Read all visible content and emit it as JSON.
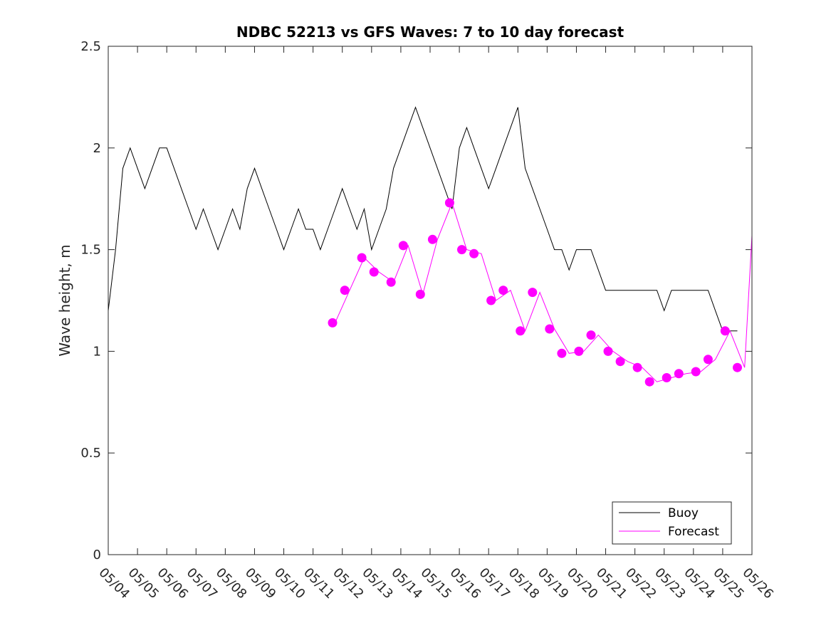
{
  "chart_data": {
    "type": "line",
    "title": "NDBC 52213 vs GFS Waves: 7 to 10 day forecast",
    "xlabel": "",
    "ylabel": "Wave height, m",
    "xlim": [
      "05/04",
      "05/26"
    ],
    "ylim": [
      0,
      2.5
    ],
    "x_ticks": [
      "05/04",
      "05/05",
      "05/06",
      "05/07",
      "05/08",
      "05/09",
      "05/10",
      "05/11",
      "05/12",
      "05/13",
      "05/14",
      "05/15",
      "05/16",
      "05/17",
      "05/18",
      "05/19",
      "05/20",
      "05/21",
      "05/22",
      "05/23",
      "05/24",
      "05/25",
      "05/26"
    ],
    "y_ticks": [
      0,
      0.5,
      1,
      1.5,
      2,
      2.5
    ],
    "y_tick_labels": [
      "0",
      "0.5",
      "1",
      "1.5",
      "2",
      "2.5"
    ],
    "grid": false,
    "legend": {
      "placement": "bottom-right",
      "entries": [
        "Buoy",
        "Forecast"
      ]
    },
    "colors": {
      "buoy": "#000000",
      "forecast": "#ff00ff"
    },
    "series": [
      {
        "name": "Buoy",
        "x": [
          "05/04 00:00",
          "05/04 06:00",
          "05/04 12:00",
          "05/04 18:00",
          "05/05 00:00",
          "05/05 06:00",
          "05/05 12:00",
          "05/05 18:00",
          "05/06 00:00",
          "05/06 06:00",
          "05/06 12:00",
          "05/06 18:00",
          "05/07 00:00",
          "05/07 06:00",
          "05/07 12:00",
          "05/07 18:00",
          "05/08 00:00",
          "05/08 06:00",
          "05/08 12:00",
          "05/08 18:00",
          "05/09 00:00",
          "05/09 06:00",
          "05/09 12:00",
          "05/09 18:00",
          "05/10 00:00",
          "05/10 06:00",
          "05/10 12:00",
          "05/10 18:00",
          "05/11 00:00",
          "05/11 06:00",
          "05/11 12:00",
          "05/11 18:00",
          "05/12 00:00",
          "05/12 06:00",
          "05/12 12:00",
          "05/12 18:00",
          "05/13 00:00",
          "05/13 06:00",
          "05/13 12:00",
          "05/13 18:00",
          "05/14 00:00",
          "05/14 06:00",
          "05/14 12:00",
          "05/14 18:00",
          "05/15 00:00",
          "05/15 06:00",
          "05/15 12:00",
          "05/15 18:00",
          "05/16 00:00",
          "05/16 06:00",
          "05/16 12:00",
          "05/16 18:00",
          "05/17 00:00",
          "05/17 06:00",
          "05/17 12:00",
          "05/17 18:00",
          "05/18 00:00",
          "05/18 06:00",
          "05/18 12:00",
          "05/18 18:00",
          "05/19 00:00",
          "05/19 06:00",
          "05/19 12:00",
          "05/19 18:00",
          "05/20 00:00",
          "05/20 06:00",
          "05/20 12:00",
          "05/20 18:00",
          "05/21 00:00",
          "05/21 06:00",
          "05/21 12:00",
          "05/21 18:00",
          "05/22 00:00",
          "05/22 06:00",
          "05/22 12:00",
          "05/22 18:00",
          "05/23 00:00",
          "05/23 06:00",
          "05/23 12:00",
          "05/23 18:00",
          "05/24 00:00",
          "05/24 06:00",
          "05/24 12:00",
          "05/24 18:00",
          "05/25 00:00",
          "05/25 06:00",
          "05/25 12:00"
        ],
        "y": [
          1.2,
          1.5,
          1.9,
          2.0,
          1.9,
          1.8,
          1.9,
          2.0,
          2.0,
          1.9,
          1.8,
          1.7,
          1.6,
          1.7,
          1.6,
          1.5,
          1.6,
          1.7,
          1.6,
          1.8,
          1.9,
          1.8,
          1.7,
          1.6,
          1.5,
          1.6,
          1.7,
          1.6,
          1.6,
          1.5,
          1.6,
          1.7,
          1.8,
          1.7,
          1.6,
          1.7,
          1.5,
          1.6,
          1.7,
          1.9,
          2.0,
          2.1,
          2.2,
          2.1,
          2.0,
          1.9,
          1.8,
          1.7,
          2.0,
          2.1,
          2.0,
          1.9,
          1.8,
          1.9,
          2.0,
          2.1,
          2.2,
          1.9,
          1.8,
          1.7,
          1.6,
          1.5,
          1.5,
          1.4,
          1.5,
          1.5,
          1.5,
          1.4,
          1.3,
          1.3,
          1.3,
          1.3,
          1.3,
          1.3,
          1.3,
          1.3,
          1.2,
          1.3,
          1.3,
          1.3,
          1.3,
          1.3,
          1.3,
          1.2,
          1.1,
          1.1,
          1.1
        ]
      },
      {
        "name": "Forecast",
        "x": [
          "05/11 18:00",
          "05/12 06:00",
          "05/12 18:00",
          "05/13 06:00",
          "05/13 18:00",
          "05/14 06:00",
          "05/14 18:00",
          "05/15 06:00",
          "05/15 18:00",
          "05/16 06:00",
          "05/16 18:00",
          "05/17 06:00",
          "05/17 18:00",
          "05/18 06:00",
          "05/18 18:00",
          "05/19 06:00",
          "05/19 18:00",
          "05/20 06:00",
          "05/20 18:00",
          "05/21 06:00",
          "05/21 18:00",
          "05/22 06:00",
          "05/22 18:00",
          "05/23 06:00",
          "05/23 18:00",
          "05/24 06:00",
          "05/24 18:00",
          "05/25 06:00",
          "05/25 18:00",
          "05/26 00:00"
        ],
        "y": [
          1.14,
          1.3,
          1.46,
          1.39,
          1.34,
          1.52,
          1.28,
          1.55,
          1.73,
          1.5,
          1.48,
          1.25,
          1.3,
          1.1,
          1.29,
          1.11,
          0.99,
          1.0,
          1.08,
          1.0,
          0.95,
          0.92,
          0.85,
          0.87,
          0.89,
          0.9,
          0.96,
          1.1,
          0.92,
          1.57
        ]
      }
    ],
    "forecast_points": {
      "name": "Forecast",
      "x": [
        "05/11 16:00",
        "05/12 02:00",
        "05/12 16:00",
        "05/13 02:00",
        "05/13 16:00",
        "05/14 02:00",
        "05/14 16:00",
        "05/15 02:00",
        "05/15 16:00",
        "05/16 02:00",
        "05/16 12:00",
        "05/17 02:00",
        "05/17 12:00",
        "05/18 02:00",
        "05/18 12:00",
        "05/19 02:00",
        "05/19 12:00",
        "05/20 02:00",
        "05/20 12:00",
        "05/21 02:00",
        "05/21 12:00",
        "05/22 02:00",
        "05/22 12:00",
        "05/23 02:00",
        "05/23 12:00",
        "05/24 02:00",
        "05/24 12:00",
        "05/25 02:00",
        "05/25 12:00"
      ],
      "y": [
        1.14,
        1.3,
        1.46,
        1.39,
        1.34,
        1.52,
        1.28,
        1.55,
        1.73,
        1.5,
        1.48,
        1.25,
        1.3,
        1.1,
        1.29,
        1.11,
        0.99,
        1.0,
        1.08,
        1.0,
        0.95,
        0.92,
        0.85,
        0.87,
        0.89,
        0.9,
        0.96,
        1.1,
        0.92
      ]
    }
  }
}
